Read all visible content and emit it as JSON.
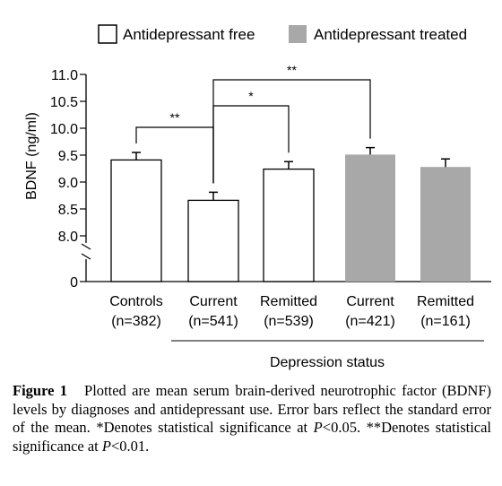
{
  "chart_data": {
    "type": "bar",
    "ylabel": "BDNF (ng/ml)",
    "xlabel": "Depression status",
    "y_ticks": [
      "11.0",
      "10.5",
      "10.0",
      "9.5",
      "9.0",
      "8.5",
      "8.0",
      "0"
    ],
    "ylim": [
      7.8,
      11.0
    ],
    "axis_break": true,
    "legend_position": "top",
    "legend": [
      {
        "name": "Antidepressant free",
        "color": "#ffffff"
      },
      {
        "name": "Antidepressant treated",
        "color": "#a8a8a8"
      }
    ],
    "categories": [
      {
        "label": "Controls",
        "n": "(n=382)"
      },
      {
        "label": "Current",
        "n": "(n=541)"
      },
      {
        "label": "Remitted",
        "n": "(n=539)"
      },
      {
        "label": "Current",
        "n": "(n=421)"
      },
      {
        "label": "Remitted",
        "n": "(n=161)"
      }
    ],
    "series": [
      {
        "name": "Antidepressant free",
        "values": [
          9.41,
          8.66,
          9.24,
          null,
          null
        ],
        "errors": [
          0.14,
          0.15,
          0.14,
          null,
          null
        ]
      },
      {
        "name": "Antidepressant treated",
        "values": [
          null,
          null,
          null,
          9.51,
          9.28
        ],
        "errors": [
          null,
          null,
          null,
          0.13,
          0.15
        ]
      }
    ],
    "significance": [
      {
        "from": 0,
        "to": 1,
        "label": "**"
      },
      {
        "from": 1,
        "to": 2,
        "label": "*"
      },
      {
        "from": 1,
        "to": 3,
        "label": "**"
      }
    ],
    "grid": false
  },
  "caption": {
    "label": "Figure 1",
    "text": "Plotted are mean serum brain-derived neurotrophic factor (BDNF) levels by diagnoses and antidepressant use. Error bars reflect the standard error of the mean.",
    "note1_prefix": "*Denotes statistical significance at ",
    "note1_p": "P",
    "note1_suffix": "<0.05.",
    "note2_prefix": "**Denotes statistical significance at ",
    "note2_p": "P",
    "note2_suffix": "<0.01."
  }
}
